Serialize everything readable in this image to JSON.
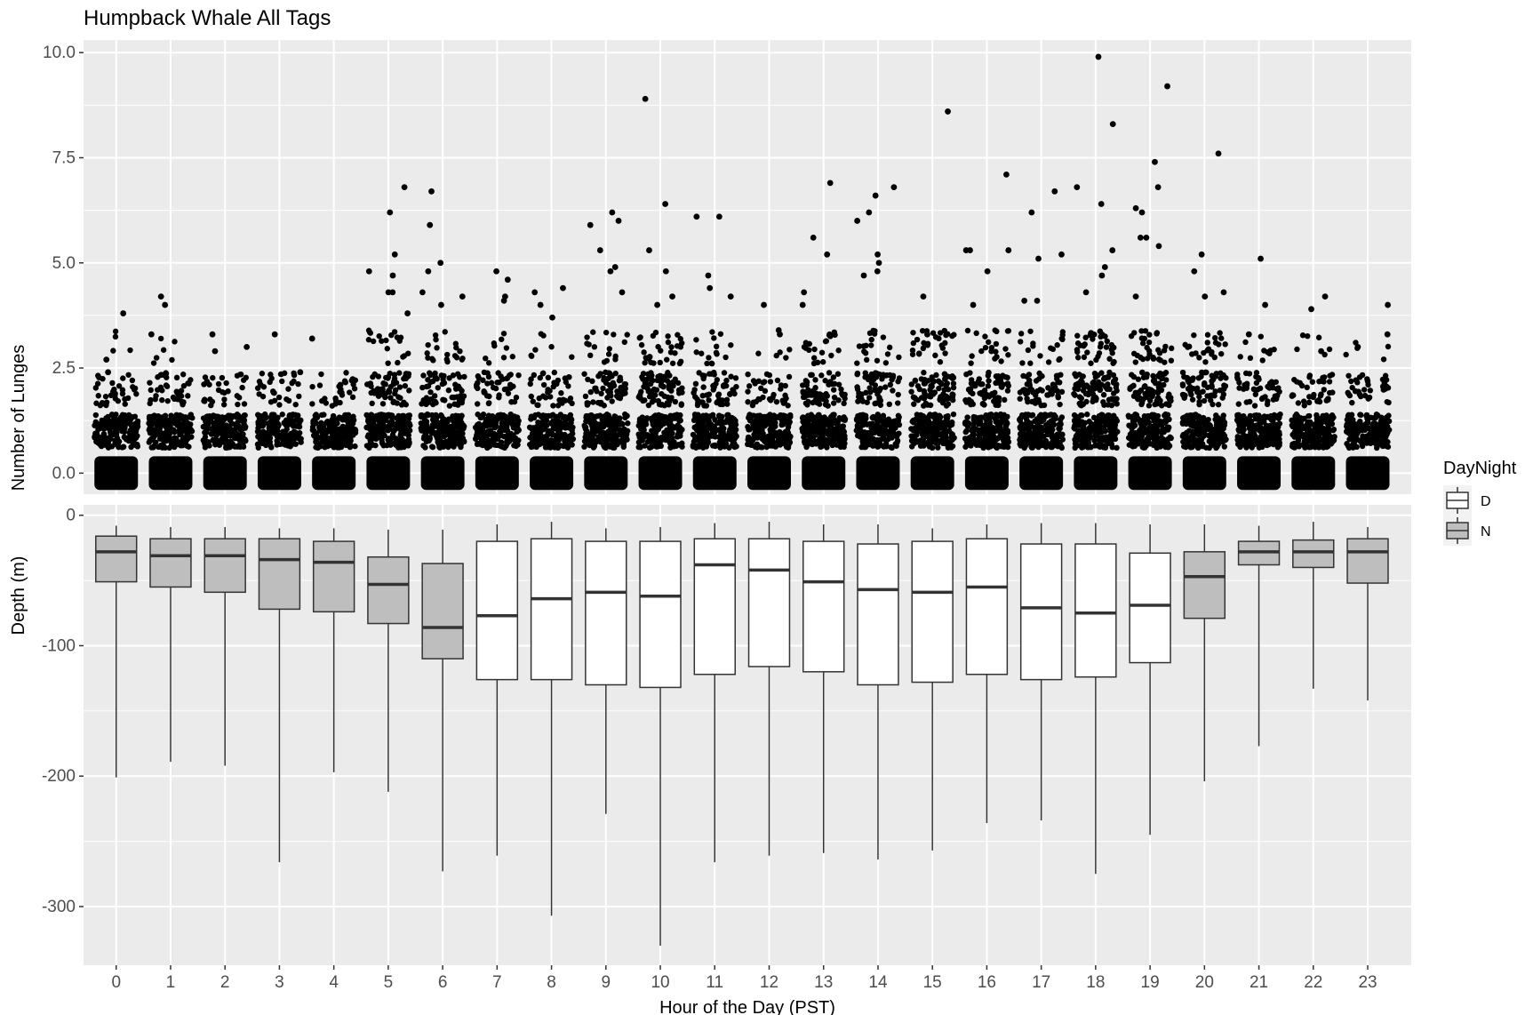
{
  "chart_data": {
    "type": "scatter+boxplot",
    "title": "Humpback Whale All Tags",
    "xlabel": "Hour of the Day (PST)",
    "categories": [
      "0",
      "1",
      "2",
      "3",
      "4",
      "5",
      "6",
      "7",
      "8",
      "9",
      "10",
      "11",
      "12",
      "13",
      "14",
      "15",
      "16",
      "17",
      "18",
      "19",
      "20",
      "21",
      "22",
      "23"
    ],
    "panels": [
      {
        "name": "lunges",
        "type": "scatter",
        "ylabel": "Number of Lunges",
        "ylim": [
          -0.5,
          10.3
        ],
        "yticks": [
          "0.0",
          "2.5",
          "5.0",
          "7.5",
          "10.0"
        ],
        "ytick_values": [
          0,
          2.5,
          5,
          7.5,
          10
        ],
        "jitter_width": 0.4,
        "jitter_height": 0.4,
        "max_values": [
          3.8,
          4.2,
          3.3,
          3.3,
          3.2,
          6.8,
          6.7,
          4.8,
          4.4,
          6.2,
          8.9,
          6.1,
          4.0,
          6.9,
          6.8,
          8.6,
          7.1,
          6.7,
          9.9,
          9.2,
          7.6,
          5.1,
          4.2,
          4.0
        ],
        "outliers": [
          {
            "hour": 0,
            "y": 3.8
          },
          {
            "hour": 0,
            "y": 2.7
          },
          {
            "hour": 0,
            "y": 2.4
          },
          {
            "hour": 1,
            "y": 4.2
          },
          {
            "hour": 1,
            "y": 4.0
          },
          {
            "hour": 1,
            "y": 3.3
          },
          {
            "hour": 2,
            "y": 3.3
          },
          {
            "hour": 2,
            "y": 3.0
          },
          {
            "hour": 2,
            "y": 2.9
          },
          {
            "hour": 3,
            "y": 3.3
          },
          {
            "hour": 3,
            "y": 2.4
          },
          {
            "hour": 3,
            "y": 2.1
          },
          {
            "hour": 4,
            "y": 3.2
          },
          {
            "hour": 4,
            "y": 2.1
          },
          {
            "hour": 5,
            "y": 6.8
          },
          {
            "hour": 5,
            "y": 6.2
          },
          {
            "hour": 5,
            "y": 5.2
          },
          {
            "hour": 5,
            "y": 4.8
          },
          {
            "hour": 5,
            "y": 4.3
          },
          {
            "hour": 5,
            "y": 4.7
          },
          {
            "hour": 5,
            "y": 4.3
          },
          {
            "hour": 5,
            "y": 3.8
          },
          {
            "hour": 6,
            "y": 6.7
          },
          {
            "hour": 6,
            "y": 5.9
          },
          {
            "hour": 6,
            "y": 5.0
          },
          {
            "hour": 6,
            "y": 4.8
          },
          {
            "hour": 6,
            "y": 4.3
          },
          {
            "hour": 6,
            "y": 4.0
          },
          {
            "hour": 6,
            "y": 4.2
          },
          {
            "hour": 7,
            "y": 4.8
          },
          {
            "hour": 7,
            "y": 4.2
          },
          {
            "hour": 7,
            "y": 4.1
          },
          {
            "hour": 7,
            "y": 4.6
          },
          {
            "hour": 8,
            "y": 4.4
          },
          {
            "hour": 8,
            "y": 4.3
          },
          {
            "hour": 8,
            "y": 4.0
          },
          {
            "hour": 8,
            "y": 3.7
          },
          {
            "hour": 9,
            "y": 6.2
          },
          {
            "hour": 9,
            "y": 6.0
          },
          {
            "hour": 9,
            "y": 5.9
          },
          {
            "hour": 9,
            "y": 5.3
          },
          {
            "hour": 9,
            "y": 4.9
          },
          {
            "hour": 9,
            "y": 4.8
          },
          {
            "hour": 9,
            "y": 4.3
          },
          {
            "hour": 10,
            "y": 8.9
          },
          {
            "hour": 10,
            "y": 6.4
          },
          {
            "hour": 10,
            "y": 5.3
          },
          {
            "hour": 10,
            "y": 4.8
          },
          {
            "hour": 10,
            "y": 4.2
          },
          {
            "hour": 10,
            "y": 4.0
          },
          {
            "hour": 11,
            "y": 6.1
          },
          {
            "hour": 11,
            "y": 6.1
          },
          {
            "hour": 11,
            "y": 4.7
          },
          {
            "hour": 11,
            "y": 4.4
          },
          {
            "hour": 11,
            "y": 4.2
          },
          {
            "hour": 12,
            "y": 4.0
          },
          {
            "hour": 12,
            "y": 3.4
          },
          {
            "hour": 12,
            "y": 3.3
          },
          {
            "hour": 13,
            "y": 6.9
          },
          {
            "hour": 13,
            "y": 5.6
          },
          {
            "hour": 13,
            "y": 5.2
          },
          {
            "hour": 13,
            "y": 4.3
          },
          {
            "hour": 13,
            "y": 4.0
          },
          {
            "hour": 14,
            "y": 6.8
          },
          {
            "hour": 14,
            "y": 6.6
          },
          {
            "hour": 14,
            "y": 6.2
          },
          {
            "hour": 14,
            "y": 6.0
          },
          {
            "hour": 14,
            "y": 5.2
          },
          {
            "hour": 14,
            "y": 5.0
          },
          {
            "hour": 14,
            "y": 4.8
          },
          {
            "hour": 14,
            "y": 4.7
          },
          {
            "hour": 15,
            "y": 8.6
          },
          {
            "hour": 15,
            "y": 4.2
          },
          {
            "hour": 15,
            "y": 3.3
          },
          {
            "hour": 16,
            "y": 7.1
          },
          {
            "hour": 16,
            "y": 5.3
          },
          {
            "hour": 16,
            "y": 5.3
          },
          {
            "hour": 16,
            "y": 5.3
          },
          {
            "hour": 16,
            "y": 4.8
          },
          {
            "hour": 16,
            "y": 4.0
          },
          {
            "hour": 17,
            "y": 6.7
          },
          {
            "hour": 17,
            "y": 6.2
          },
          {
            "hour": 17,
            "y": 5.2
          },
          {
            "hour": 17,
            "y": 5.1
          },
          {
            "hour": 17,
            "y": 4.1
          },
          {
            "hour": 17,
            "y": 4.1
          },
          {
            "hour": 18,
            "y": 9.9
          },
          {
            "hour": 18,
            "y": 8.3
          },
          {
            "hour": 18,
            "y": 6.8
          },
          {
            "hour": 18,
            "y": 6.4
          },
          {
            "hour": 18,
            "y": 5.3
          },
          {
            "hour": 18,
            "y": 4.9
          },
          {
            "hour": 18,
            "y": 4.7
          },
          {
            "hour": 18,
            "y": 4.3
          },
          {
            "hour": 19,
            "y": 9.2
          },
          {
            "hour": 19,
            "y": 7.4
          },
          {
            "hour": 19,
            "y": 6.8
          },
          {
            "hour": 19,
            "y": 6.3
          },
          {
            "hour": 19,
            "y": 6.2
          },
          {
            "hour": 19,
            "y": 5.6
          },
          {
            "hour": 19,
            "y": 5.6
          },
          {
            "hour": 19,
            "y": 5.4
          },
          {
            "hour": 19,
            "y": 4.2
          },
          {
            "hour": 20,
            "y": 7.6
          },
          {
            "hour": 20,
            "y": 5.2
          },
          {
            "hour": 20,
            "y": 4.8
          },
          {
            "hour": 20,
            "y": 4.3
          },
          {
            "hour": 20,
            "y": 4.2
          },
          {
            "hour": 21,
            "y": 5.1
          },
          {
            "hour": 21,
            "y": 4.0
          },
          {
            "hour": 21,
            "y": 3.3
          },
          {
            "hour": 22,
            "y": 4.2
          },
          {
            "hour": 22,
            "y": 3.9
          },
          {
            "hour": 22,
            "y": 2.9
          },
          {
            "hour": 23,
            "y": 4.0
          },
          {
            "hour": 23,
            "y": 3.3
          },
          {
            "hour": 23,
            "y": 3.0
          }
        ]
      },
      {
        "name": "depth",
        "type": "boxplot",
        "ylabel": "Depth (m)",
        "ylim": [
          -345,
          8
        ],
        "yticks": [
          "0",
          "-100",
          "-200",
          "-300"
        ],
        "ytick_values": [
          0,
          -100,
          -200,
          -300
        ],
        "boxes": [
          {
            "hour": 0,
            "group": "N",
            "whisker_low": -201,
            "q1": -51,
            "median": -28,
            "q3": -16,
            "whisker_high": -8
          },
          {
            "hour": 1,
            "group": "N",
            "whisker_low": -189,
            "q1": -55,
            "median": -31,
            "q3": -18,
            "whisker_high": -9
          },
          {
            "hour": 2,
            "group": "N",
            "whisker_low": -192,
            "q1": -59,
            "median": -31,
            "q3": -18,
            "whisker_high": -9
          },
          {
            "hour": 3,
            "group": "N",
            "whisker_low": -266,
            "q1": -72,
            "median": -34,
            "q3": -18,
            "whisker_high": -10
          },
          {
            "hour": 4,
            "group": "N",
            "whisker_low": -197,
            "q1": -74,
            "median": -36,
            "q3": -20,
            "whisker_high": -10
          },
          {
            "hour": 5,
            "group": "N",
            "whisker_low": -212,
            "q1": -83,
            "median": -53,
            "q3": -32,
            "whisker_high": -11
          },
          {
            "hour": 6,
            "group": "N",
            "whisker_low": -273,
            "q1": -110,
            "median": -86,
            "q3": -37,
            "whisker_high": -11
          },
          {
            "hour": 7,
            "group": "D",
            "whisker_low": -261,
            "q1": -126,
            "median": -77,
            "q3": -20,
            "whisker_high": -7
          },
          {
            "hour": 8,
            "group": "D",
            "whisker_low": -307,
            "q1": -126,
            "median": -64,
            "q3": -18,
            "whisker_high": -5
          },
          {
            "hour": 9,
            "group": "D",
            "whisker_low": -229,
            "q1": -130,
            "median": -59,
            "q3": -20,
            "whisker_high": -10
          },
          {
            "hour": 10,
            "group": "D",
            "whisker_low": -330,
            "q1": -132,
            "median": -62,
            "q3": -20,
            "whisker_high": -9
          },
          {
            "hour": 11,
            "group": "D",
            "whisker_low": -266,
            "q1": -122,
            "median": -38,
            "q3": -18,
            "whisker_high": -6
          },
          {
            "hour": 12,
            "group": "D",
            "whisker_low": -261,
            "q1": -116,
            "median": -42,
            "q3": -18,
            "whisker_high": -5
          },
          {
            "hour": 13,
            "group": "D",
            "whisker_low": -259,
            "q1": -120,
            "median": -51,
            "q3": -20,
            "whisker_high": -7
          },
          {
            "hour": 14,
            "group": "D",
            "whisker_low": -264,
            "q1": -130,
            "median": -57,
            "q3": -22,
            "whisker_high": -7
          },
          {
            "hour": 15,
            "group": "D",
            "whisker_low": -257,
            "q1": -128,
            "median": -59,
            "q3": -20,
            "whisker_high": -10
          },
          {
            "hour": 16,
            "group": "D",
            "whisker_low": -236,
            "q1": -122,
            "median": -55,
            "q3": -18,
            "whisker_high": -7
          },
          {
            "hour": 17,
            "group": "D",
            "whisker_low": -234,
            "q1": -126,
            "median": -71,
            "q3": -22,
            "whisker_high": -6
          },
          {
            "hour": 18,
            "group": "D",
            "whisker_low": -275,
            "q1": -124,
            "median": -75,
            "q3": -22,
            "whisker_high": -6
          },
          {
            "hour": 19,
            "group": "D",
            "whisker_low": -245,
            "q1": -113,
            "median": -69,
            "q3": -29,
            "whisker_high": -7
          },
          {
            "hour": 20,
            "group": "N",
            "whisker_low": -204,
            "q1": -79,
            "median": -47,
            "q3": -28,
            "whisker_high": -7
          },
          {
            "hour": 21,
            "group": "N",
            "whisker_low": -177,
            "q1": -38,
            "median": -28,
            "q3": -20,
            "whisker_high": -8
          },
          {
            "hour": 22,
            "group": "N",
            "whisker_low": -133,
            "q1": -40,
            "median": -28,
            "q3": -19,
            "whisker_high": -5
          },
          {
            "hour": 23,
            "group": "N",
            "whisker_low": -142,
            "q1": -52,
            "median": -28,
            "q3": -18,
            "whisker_high": -9
          }
        ]
      }
    ],
    "legend": {
      "title": "DayNight",
      "placement": "right",
      "items": [
        {
          "label": "D",
          "fill": "#ffffff"
        },
        {
          "label": "N",
          "fill": "#bebebe"
        }
      ]
    },
    "grid": true,
    "colors": {
      "panel_bg": "#ebebeb",
      "grid": "#ffffff",
      "points": "#000000",
      "box_stroke": "#333333",
      "day_fill": "#ffffff",
      "night_fill": "#bebebe"
    }
  }
}
